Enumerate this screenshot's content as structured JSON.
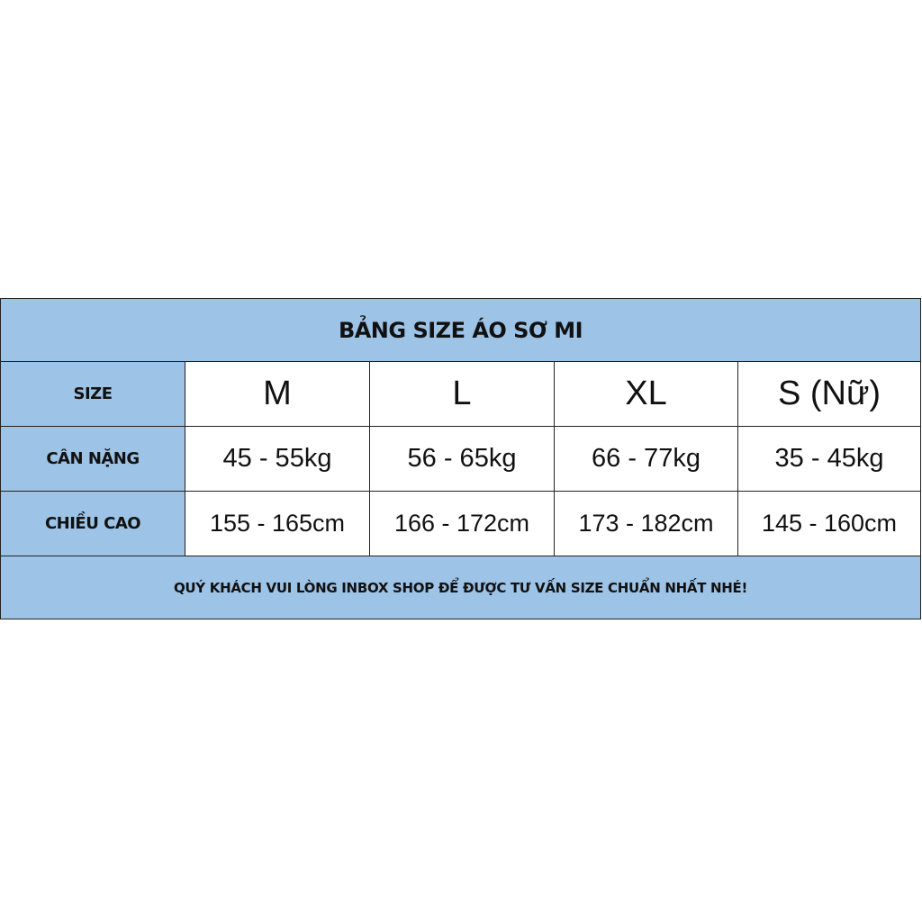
{
  "title": "BẢNG SIZE ÁO SƠ MI",
  "rows": [
    {
      "label": "SIZE",
      "values": [
        "M",
        "L",
        "XL",
        "S (Nữ)"
      ]
    },
    {
      "label": "CÂN NẶNG",
      "values": [
        "45 - 55kg",
        "56 - 65kg",
        "66 - 77kg",
        "35 - 45kg"
      ]
    },
    {
      "label": "CHIỀU CAO",
      "values": [
        "155 - 165cm",
        "166 - 172cm",
        "173 - 182cm",
        "145 - 160cm"
      ]
    }
  ],
  "footer": "QUÝ KHÁCH VUI LÒNG INBOX SHOP ĐỂ ĐƯỢC TƯ VẤN SIZE CHUẨN NHẤT NHÉ!",
  "colors": {
    "header_bg": "#9dc3e6",
    "cell_bg": "#ffffff",
    "border": "#222222"
  }
}
